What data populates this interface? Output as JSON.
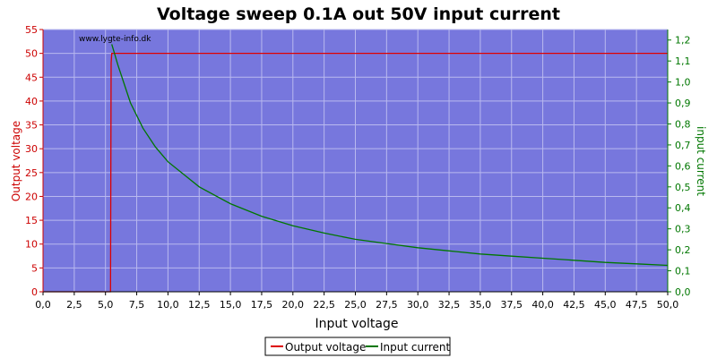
{
  "chart_data": {
    "type": "line",
    "title": "Voltage sweep 0.1A out 50V input current",
    "watermark": "www.lygte-info.dk",
    "xlabel": "Input voltage",
    "ylabel_left": "Output voltage",
    "ylabel_right": "input current",
    "xlim": [
      0,
      50
    ],
    "ylim_left": [
      0,
      55
    ],
    "ylim_right": [
      0,
      1.25
    ],
    "x_ticks": [
      "0,0",
      "2,5",
      "5,0",
      "7,5",
      "10,0",
      "12,5",
      "15,0",
      "17,5",
      "20,0",
      "22,5",
      "25,0",
      "27,5",
      "30,0",
      "32,5",
      "35,0",
      "37,5",
      "40,0",
      "42,5",
      "45,0",
      "47,5",
      "50,0"
    ],
    "y_left_ticks": [
      "0",
      "5",
      "10",
      "15",
      "20",
      "25",
      "30",
      "35",
      "40",
      "45",
      "50",
      "55"
    ],
    "y_right_ticks": [
      "0,0",
      "0,1",
      "0,2",
      "0,3",
      "0,4",
      "0,5",
      "0,6",
      "0,7",
      "0,8",
      "0,9",
      "1,0",
      "1,1",
      "1,2"
    ],
    "grid": true,
    "legend_position": "bottom-center",
    "colors": {
      "plot_bg": "#7777dd",
      "grid": "#b9b9ef",
      "output_voltage": "#dd0000",
      "input_current": "#007700",
      "left_axis": "#cc0000",
      "right_axis": "#007700"
    },
    "series": [
      {
        "name": "Output voltage",
        "axis": "left",
        "x": [
          0.0,
          5.4,
          5.45,
          5.5,
          6.0,
          10.0,
          20.0,
          30.0,
          40.0,
          50.0
        ],
        "y": [
          0.0,
          0.0,
          48.0,
          50.0,
          50.0,
          50.0,
          50.0,
          50.0,
          50.0,
          50.0
        ]
      },
      {
        "name": "Input current",
        "axis": "right",
        "x": [
          5.5,
          6.0,
          7.0,
          8.0,
          9.0,
          10.0,
          12.5,
          15.0,
          17.5,
          20.0,
          22.5,
          25.0,
          27.5,
          30.0,
          32.5,
          35.0,
          37.5,
          40.0,
          42.5,
          45.0,
          47.5,
          50.0
        ],
        "y": [
          1.18,
          1.08,
          0.9,
          0.78,
          0.69,
          0.62,
          0.5,
          0.42,
          0.36,
          0.315,
          0.28,
          0.25,
          0.23,
          0.21,
          0.195,
          0.18,
          0.17,
          0.16,
          0.15,
          0.14,
          0.133,
          0.126
        ]
      }
    ]
  }
}
